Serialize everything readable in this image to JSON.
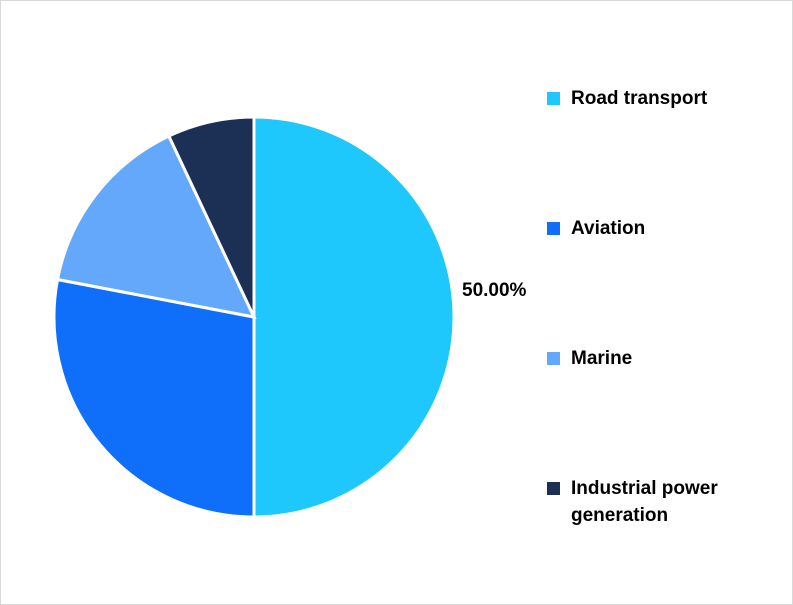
{
  "chart_data": {
    "type": "pie",
    "categories": [
      "Road transport",
      "Aviation",
      "Marine",
      "Industrial power generation"
    ],
    "values": [
      50,
      28,
      15,
      7
    ],
    "value_labels": [
      "50.00%",
      null,
      null,
      null
    ],
    "colors": [
      "#1ec8fc",
      "#0f6ffa",
      "#64a8fb",
      "#1c2f54"
    ],
    "legend": "right"
  }
}
